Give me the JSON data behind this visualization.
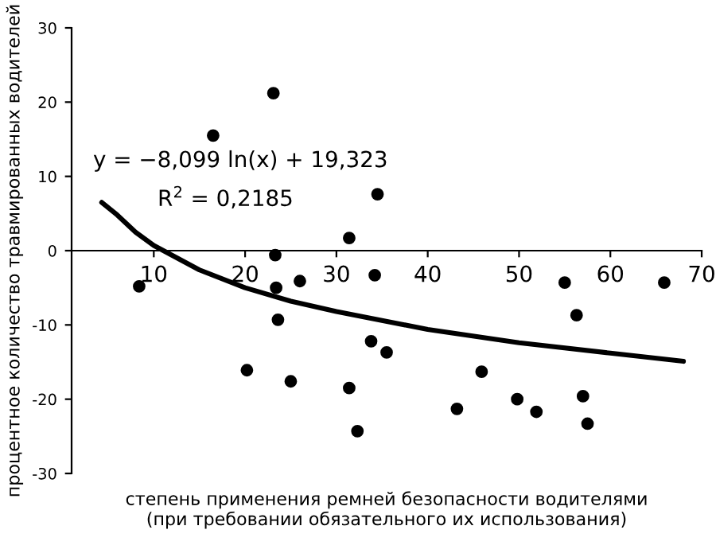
{
  "chart_data": {
    "type": "scatter",
    "xlabel": "степень применения ремней безопасности водителями\n(при требовании обязательного их использования)",
    "ylabel": "процентное количество травмированных водителей",
    "annotations": [
      "y = −8,099 ln(x) + 19,323",
      "R$^{2}$ = 0,2185"
    ],
    "xlim": [
      1,
      70
    ],
    "xticks": [
      10,
      20,
      30,
      40,
      50,
      60,
      70
    ],
    "ylim": [
      -30,
      30
    ],
    "yticks": [
      -30,
      -20,
      -10,
      0,
      10,
      20,
      30
    ],
    "grid": false,
    "series": [
      {
        "marker": "circle",
        "color": "#000000",
        "x": [
          8.4,
          16.5,
          23.1,
          23.3,
          23.4,
          23.6,
          26.0,
          20.2,
          25.0,
          31.4,
          31.4,
          32.3,
          34.5,
          34.2,
          33.8,
          35.5,
          45.9,
          43.2,
          49.8,
          51.9,
          55.0,
          56.3,
          57.0,
          57.5,
          65.9
        ],
        "values": [
          -4.8,
          15.5,
          21.2,
          -0.6,
          -5.0,
          -9.3,
          -4.1,
          -16.1,
          -17.6,
          -18.5,
          1.7,
          -24.3,
          7.6,
          -3.3,
          -12.2,
          -13.7,
          -16.3,
          -21.3,
          -20.0,
          -21.7,
          -4.3,
          -8.7,
          -19.6,
          -23.3,
          -4.3
        ]
      },
      {
        "type": "line",
        "color": "#000000",
        "x": [
          4.3,
          6,
          8,
          10,
          15,
          20,
          25,
          30,
          40,
          50,
          60,
          68
        ],
        "values": [
          6.5,
          4.8,
          2.5,
          0.7,
          -2.6,
          -5.0,
          -6.8,
          -8.2,
          -10.6,
          -12.4,
          -13.8,
          -14.9
        ]
      }
    ]
  }
}
